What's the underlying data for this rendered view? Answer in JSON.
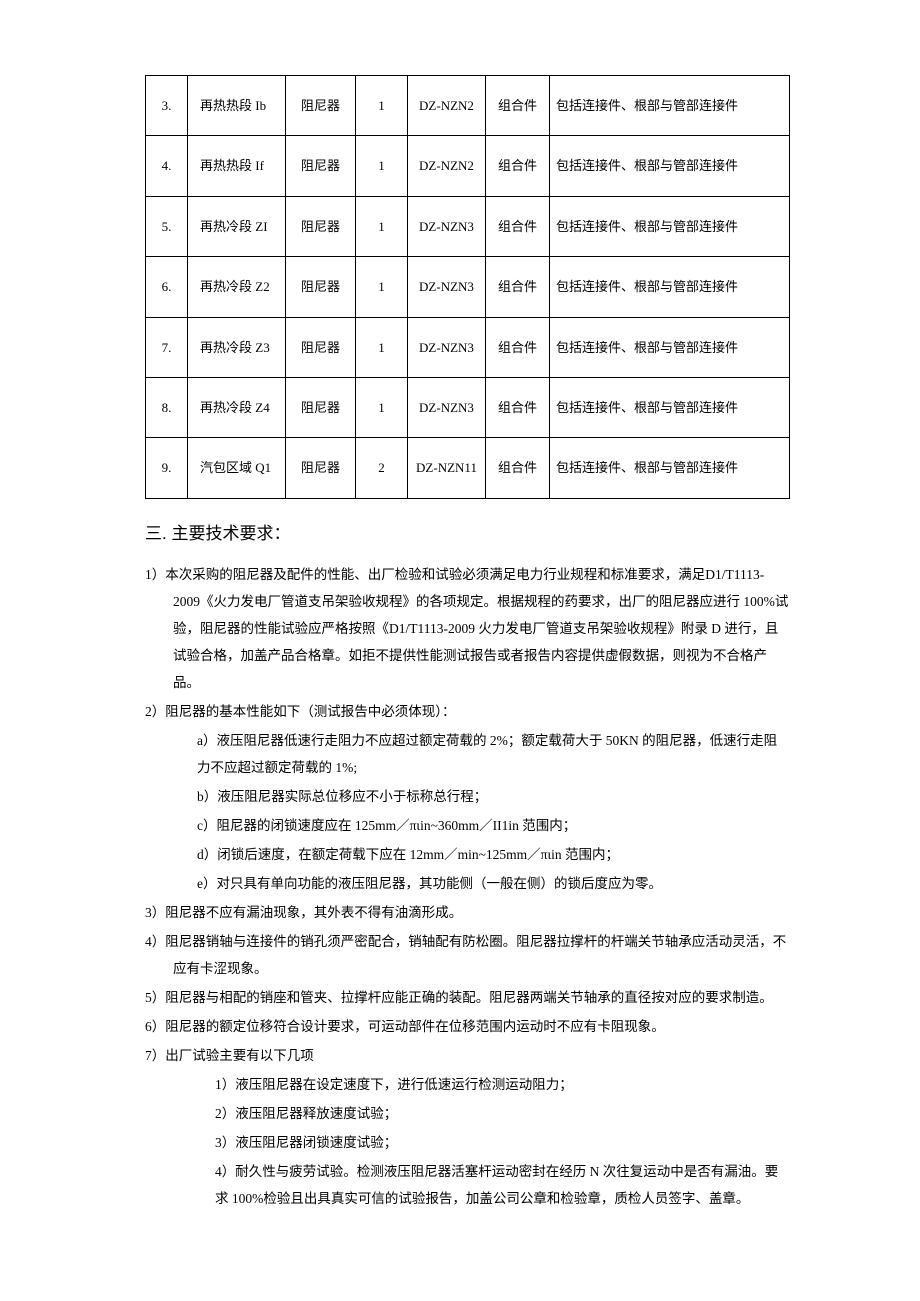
{
  "table": {
    "rows": [
      {
        "idx": "3.",
        "zone": "再热热段 Ib",
        "name": "阻尼器",
        "qty": "1",
        "model": "DZ-NZN2",
        "type": "组合件",
        "remark": "包括连接件、根部与管部连接件"
      },
      {
        "idx": "4.",
        "zone": "再热热段 If",
        "name": "阻尼器",
        "qty": "1",
        "model": "DZ-NZN2",
        "type": "组合件",
        "remark": "包括连接件、根部与管部连接件"
      },
      {
        "idx": "5.",
        "zone": "再热冷段 ZI",
        "name": "阻尼器",
        "qty": "1",
        "model": "DZ-NZN3",
        "type": "组合件",
        "remark": "包括连接件、根部与管部连接件"
      },
      {
        "idx": "6.",
        "zone": "再热冷段 Z2",
        "name": "阻尼器",
        "qty": "1",
        "model": "DZ-NZN3",
        "type": "组合件",
        "remark": "包括连接件、根部与管部连接件"
      },
      {
        "idx": "7.",
        "zone": "再热冷段 Z3",
        "name": "阻尼器",
        "qty": "1",
        "model": "DZ-NZN3",
        "type": "组合件",
        "remark": "包括连接件、根部与管部连接件"
      },
      {
        "idx": "8.",
        "zone": "再热冷段 Z4",
        "name": "阻尼器",
        "qty": "1",
        "model": "DZ-NZN3",
        "type": "组合件",
        "remark": "包括连接件、根部与管部连接件"
      },
      {
        "idx": "9.",
        "zone": "汽包区域 Q1",
        "name": "阻尼器",
        "qty": "2",
        "model": "DZ-NZN11",
        "type": "组合件",
        "remark": "包括连接件、根部与管部连接件"
      }
    ]
  },
  "section_title": "三. 主要技术要求：",
  "p1": "1）本次采购的阻尼器及配件的性能、出厂检验和试验必须满足电力行业规程和标准要求，满足D1/T1113-2009《火力发电厂管道支吊架验收规程》的各项规定。根据规程的药要求，出厂的阻尼器应进行 100%试验，阻尼器的性能试验应严格按照《D1/T1113-2009 火力发电厂管道支吊架验收规程》附录 D 进行，且试验合格，加盖产品合格章。如拒不提供性能测试报告或者报告内容提供虚假数据，则视为不合格产品。",
  "p2": "2）阻尼器的基本性能如下（测试报告中必须体现）：",
  "p2a": "a）液压阻尼器低速行走阻力不应超过额定荷载的 2%；额定载荷大于 50KN 的阻尼器，低速行走阻力不应超过额定荷载的 1%;",
  "p2b": "b）液压阻尼器实际总位移应不小于标称总行程；",
  "p2c": "c）阻尼器的闭锁速度应在 125mm／πιin~360mm／II1in 范围内；",
  "p2d": "d）闭锁后速度，在额定荷载下应在 12mm／min~125mm／πιin 范围内；",
  "p2e": "e）对只具有单向功能的液压阻尼器，其功能侧（一般在侧）的锁后度应为零。",
  "p3": "3）阻尼器不应有漏油现象，其外表不得有油滴形成。",
  "p4": "4）阻尼器销轴与连接件的销孔须严密配合，销轴配有防松圈。阻尼器拉撑杆的杆端关节轴承应活动灵活，不应有卡涩现象。",
  "p5": "5）阻尼器与相配的销座和管夹、拉撑杆应能正确的装配。阻尼器两端关节轴承的直径按对应的要求制造。",
  "p6": "6）阻尼器的额定位移符合设计要求，可运动部件在位移范围内运动时不应有卡阻现象。",
  "p7": "7）出厂试验主要有以下几项",
  "p7_1": "1）液压阻尼器在设定速度下，进行低速运行检测运动阻力；",
  "p7_2": "2）液压阻尼器释放速度试验；",
  "p7_3": "3）液压阻尼器闭锁速度试验；",
  "p7_4": "4）耐久性与疲劳试验。检测液压阻尼器活塞杆运动密封在经历 N 次往复运动中是否有漏油。要求 100%检验且出具真实可信的试验报告，加盖公司公章和检验章，质检人员签字、盖章。"
}
